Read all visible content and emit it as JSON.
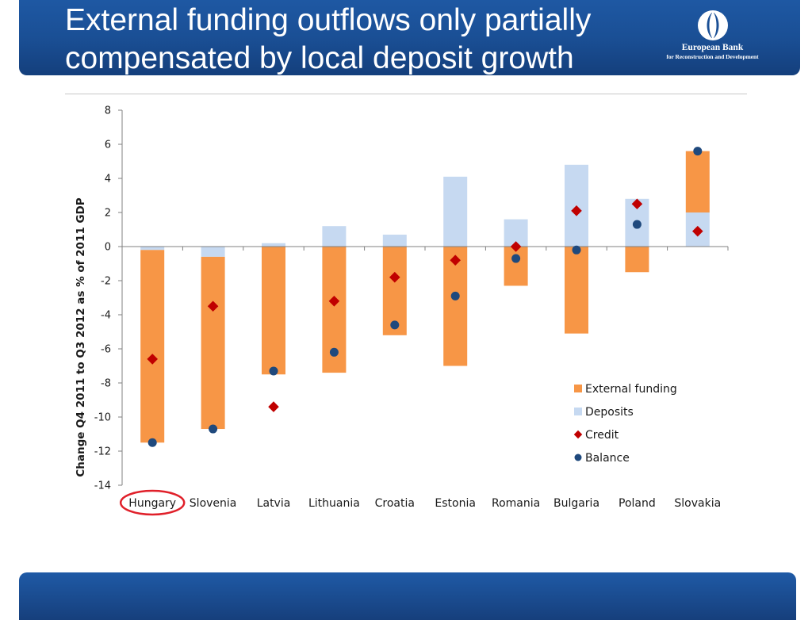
{
  "header": {
    "title": "External funding outflows only partially compensated by local deposit growth",
    "logo_name": "European Bank",
    "logo_sub": "for Reconstruction and Development"
  },
  "colors": {
    "external_funding": "#f79646",
    "deposits": "#c6d9f1",
    "credit": "#c00000",
    "balance": "#1f497d",
    "highlight_circle": "#e0202a"
  },
  "chart_data": {
    "type": "bar",
    "stacked": true,
    "ylabel": "Change Q4 2011 to Q3 2012 as % of 2011 GDP",
    "ylim": [
      -14,
      8
    ],
    "yticks": [
      -14,
      -12,
      -10,
      -8,
      -6,
      -4,
      -2,
      0,
      2,
      4,
      6,
      8
    ],
    "grid": false,
    "legend_position": "bottom-right",
    "highlighted_category": "Hungary",
    "categories": [
      "Hungary",
      "Slovenia",
      "Latvia",
      "Lithuania",
      "Croatia",
      "Estonia",
      "Romania",
      "Bulgaria",
      "Poland",
      "Slovakia"
    ],
    "series": [
      {
        "name": "External funding",
        "kind": "bar",
        "values": [
          -11.3,
          -10.1,
          -7.5,
          -7.4,
          -5.2,
          -7.0,
          -2.3,
          -5.1,
          -1.5,
          3.6
        ]
      },
      {
        "name": "Deposits",
        "kind": "bar",
        "values": [
          -0.2,
          -0.6,
          0.2,
          1.2,
          0.7,
          4.1,
          1.6,
          4.8,
          2.8,
          2.0
        ]
      },
      {
        "name": "Credit",
        "kind": "diamond",
        "values": [
          -6.6,
          -3.5,
          -9.4,
          -3.2,
          -1.8,
          -0.8,
          0.0,
          2.1,
          2.5,
          0.9
        ]
      },
      {
        "name": "Balance",
        "kind": "circle",
        "values": [
          -11.5,
          -10.7,
          -7.3,
          -6.2,
          -4.6,
          -2.9,
          -0.7,
          -0.2,
          1.3,
          5.6
        ]
      }
    ]
  }
}
